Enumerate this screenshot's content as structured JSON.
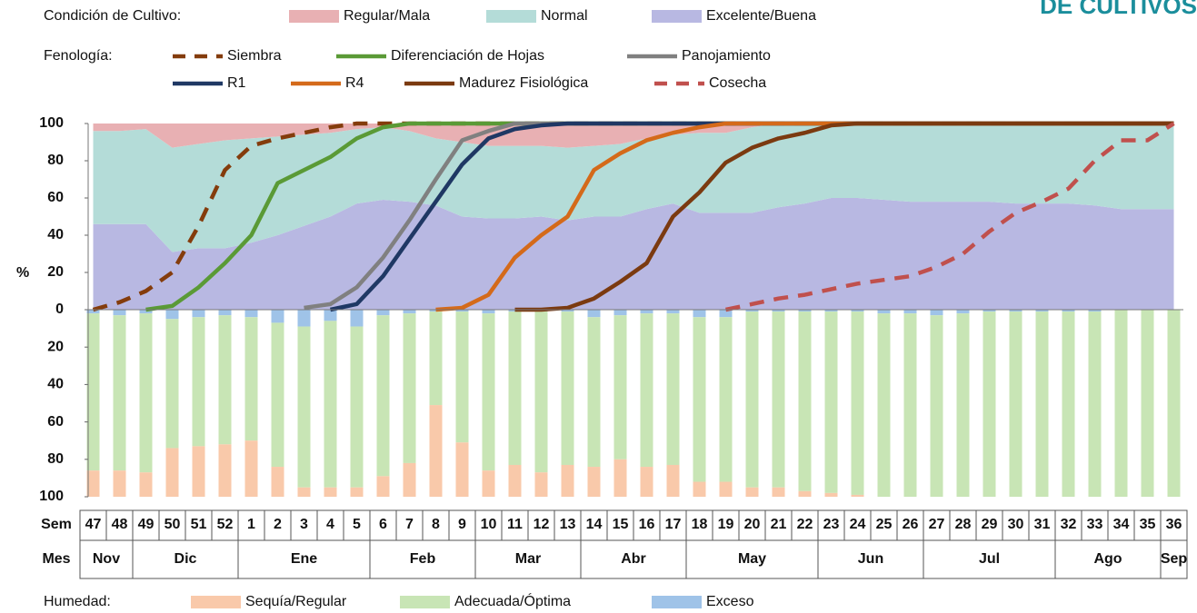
{
  "header": {
    "text": "DE CULTIVOS"
  },
  "chart_data": [
    {
      "type": "area",
      "stacked": true,
      "legend_title": "Condición de Cultivo:",
      "y_label": "%",
      "categories": [
        "47",
        "48",
        "49",
        "50",
        "51",
        "52",
        "1",
        "2",
        "3",
        "4",
        "5",
        "6",
        "7",
        "8",
        "9",
        "10",
        "11",
        "12",
        "13",
        "14",
        "15",
        "16",
        "17",
        "18",
        "19",
        "20",
        "21",
        "22",
        "23",
        "24",
        "25",
        "26",
        "27",
        "28",
        "29",
        "30",
        "31",
        "32",
        "33",
        "34",
        "35",
        "36"
      ],
      "ylim": [
        0,
        100
      ],
      "yticks": [
        0,
        20,
        40,
        60,
        80,
        100
      ],
      "series": [
        {
          "name": "Regular/Mala",
          "color": "#e8b0b3",
          "values": [
            4,
            4,
            3,
            13,
            11,
            9,
            8,
            7,
            6,
            5,
            3,
            2,
            4,
            8,
            10,
            12,
            12,
            12,
            13,
            12,
            11,
            8,
            6,
            5,
            5,
            2,
            0,
            0,
            0,
            0,
            0,
            0,
            0,
            0,
            0,
            0,
            0,
            0,
            0,
            0,
            0,
            0
          ]
        },
        {
          "name": "Normal",
          "color": "#b4dcd8",
          "values": [
            50,
            50,
            51,
            56,
            56,
            58,
            56,
            53,
            49,
            45,
            40,
            39,
            38,
            36,
            40,
            39,
            39,
            38,
            39,
            38,
            39,
            38,
            37,
            43,
            43,
            46,
            45,
            43,
            40,
            40,
            41,
            42,
            42,
            42,
            42,
            43,
            43,
            43,
            44,
            46,
            46,
            46
          ]
        },
        {
          "name": "Excelente/Buena",
          "color": "#b8b8e2",
          "values": [
            46,
            46,
            46,
            31,
            33,
            33,
            36,
            40,
            45,
            50,
            57,
            59,
            58,
            56,
            50,
            49,
            49,
            50,
            48,
            50,
            50,
            54,
            57,
            52,
            52,
            52,
            55,
            57,
            60,
            60,
            59,
            58,
            58,
            58,
            58,
            57,
            57,
            57,
            56,
            54,
            54,
            54
          ]
        }
      ]
    },
    {
      "type": "line",
      "legend_title": "Fenología:",
      "ylim": [
        0,
        100
      ],
      "series": [
        {
          "name": "Siembra",
          "color": "#843c0c",
          "dashed": true,
          "values": [
            0,
            4,
            10,
            20,
            45,
            75,
            88,
            92,
            95,
            98,
            100,
            100,
            100,
            100,
            100,
            100,
            100,
            100,
            100,
            100,
            100,
            100,
            100,
            100,
            100,
            100,
            100,
            100,
            100,
            100,
            100,
            100,
            100,
            100,
            100,
            100,
            100,
            100,
            100,
            100,
            100,
            100
          ]
        },
        {
          "name": "Diferenciación de Hojas",
          "color": "#5a9a36",
          "dashed": false,
          "values": [
            null,
            null,
            0,
            2,
            12,
            25,
            40,
            68,
            75,
            82,
            92,
            98,
            100,
            100,
            100,
            100,
            100,
            100,
            100,
            100,
            100,
            100,
            100,
            100,
            100,
            100,
            100,
            100,
            100,
            100,
            100,
            100,
            100,
            100,
            100,
            100,
            100,
            100,
            100,
            100,
            100,
            100
          ]
        },
        {
          "name": "Panojamiento",
          "color": "#808080",
          "dashed": false,
          "values": [
            null,
            null,
            null,
            null,
            null,
            null,
            null,
            null,
            1,
            3,
            12,
            28,
            48,
            70,
            91,
            96,
            100,
            100,
            100,
            100,
            100,
            100,
            100,
            100,
            100,
            100,
            100,
            100,
            100,
            100,
            100,
            100,
            100,
            100,
            100,
            100,
            100,
            100,
            100,
            100,
            100,
            100
          ]
        },
        {
          "name": "R1",
          "color": "#1f3864",
          "dashed": false,
          "values": [
            null,
            null,
            null,
            null,
            null,
            null,
            null,
            null,
            null,
            0,
            3,
            18,
            38,
            58,
            78,
            92,
            97,
            99,
            100,
            100,
            100,
            100,
            100,
            100,
            100,
            100,
            100,
            100,
            100,
            100,
            100,
            100,
            100,
            100,
            100,
            100,
            100,
            100,
            100,
            100,
            100,
            100
          ]
        },
        {
          "name": "R4",
          "color": "#d46a1a",
          "dashed": false,
          "values": [
            null,
            null,
            null,
            null,
            null,
            null,
            null,
            null,
            null,
            null,
            null,
            null,
            null,
            0,
            1,
            8,
            28,
            40,
            50,
            75,
            84,
            91,
            95,
            98,
            100,
            100,
            100,
            100,
            100,
            100,
            100,
            100,
            100,
            100,
            100,
            100,
            100,
            100,
            100,
            100,
            100,
            100
          ]
        },
        {
          "name": "Madurez Fisiológica",
          "color": "#7b3a10",
          "dashed": false,
          "values": [
            null,
            null,
            null,
            null,
            null,
            null,
            null,
            null,
            null,
            null,
            null,
            null,
            null,
            null,
            null,
            null,
            0,
            0,
            1,
            6,
            15,
            25,
            50,
            63,
            79,
            87,
            92,
            95,
            99,
            100,
            100,
            100,
            100,
            100,
            100,
            100,
            100,
            100,
            100,
            100,
            100,
            100
          ]
        },
        {
          "name": "Cosecha",
          "color": "#c0504d",
          "dashed": true,
          "values": [
            null,
            null,
            null,
            null,
            null,
            null,
            null,
            null,
            null,
            null,
            null,
            null,
            null,
            null,
            null,
            null,
            null,
            null,
            null,
            null,
            null,
            null,
            null,
            null,
            0,
            3,
            6,
            8,
            11,
            14,
            16,
            18,
            23,
            30,
            42,
            52,
            58,
            65,
            80,
            91,
            91,
            100
          ]
        }
      ]
    },
    {
      "type": "bar",
      "stacked": true,
      "inverted": true,
      "legend_title": "Humedad:",
      "ylim": [
        0,
        100
      ],
      "yticks": [
        20,
        40,
        60,
        80,
        100
      ],
      "series": [
        {
          "name": "Sequía/Regular",
          "color": "#f9c9aa",
          "values": [
            14,
            14,
            13,
            26,
            27,
            28,
            30,
            16,
            5,
            5,
            5,
            11,
            18,
            49,
            29,
            14,
            17,
            13,
            17,
            16,
            20,
            16,
            17,
            8,
            8,
            5,
            5,
            3,
            2,
            1,
            0,
            0,
            0,
            0,
            0,
            0,
            0,
            0,
            0,
            0,
            0,
            0
          ]
        },
        {
          "name": "Adecuada/Óptima",
          "color": "#c8e5b5",
          "values": [
            84,
            83,
            85,
            69,
            69,
            69,
            66,
            77,
            86,
            89,
            86,
            86,
            80,
            50,
            70,
            84,
            82,
            86,
            82,
            80,
            77,
            82,
            81,
            88,
            88,
            94,
            94,
            96,
            97,
            98,
            98,
            98,
            97,
            98,
            99,
            99,
            99,
            99,
            99,
            100,
            100,
            100
          ]
        },
        {
          "name": "Exceso",
          "color": "#9fc3e8",
          "values": [
            2,
            3,
            2,
            5,
            4,
            3,
            4,
            7,
            9,
            6,
            9,
            3,
            2,
            1,
            1,
            2,
            1,
            1,
            1,
            4,
            3,
            2,
            2,
            4,
            4,
            1,
            1,
            1,
            1,
            1,
            2,
            2,
            3,
            2,
            1,
            1,
            1,
            1,
            1,
            0,
            0,
            0
          ]
        }
      ]
    }
  ],
  "axis_table": {
    "week_label": "Sem",
    "month_label": "Mes",
    "months": [
      {
        "label": "Nov",
        "weeks": 2
      },
      {
        "label": "Dic",
        "weeks": 4
      },
      {
        "label": "Ene",
        "weeks": 5
      },
      {
        "label": "Feb",
        "weeks": 4
      },
      {
        "label": "Mar",
        "weeks": 4
      },
      {
        "label": "Abr",
        "weeks": 4
      },
      {
        "label": "May",
        "weeks": 5
      },
      {
        "label": "Jun",
        "weeks": 4
      },
      {
        "label": "Jul",
        "weeks": 5
      },
      {
        "label": "Ago",
        "weeks": 4
      },
      {
        "label": "Sep",
        "weeks": 1
      }
    ]
  }
}
